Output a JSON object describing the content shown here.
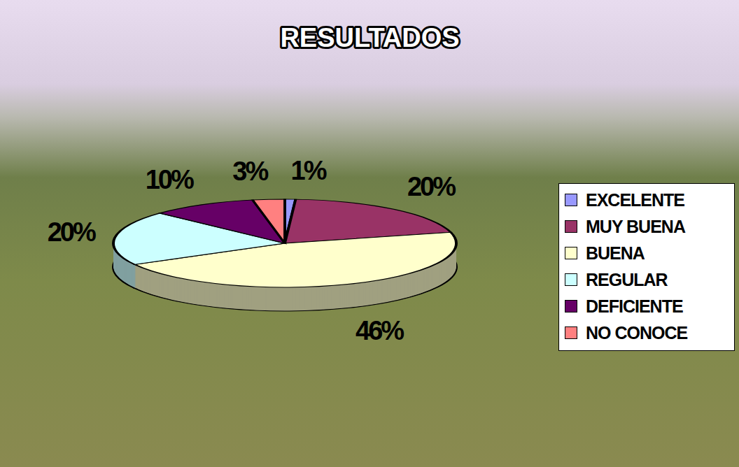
{
  "chart_data": {
    "type": "pie",
    "title": "RESULTADOS",
    "categories": [
      "EXCELENTE",
      "MUY BUENA",
      "BUENA",
      "REGULAR",
      "DEFICIENTE",
      "NO CONOCE"
    ],
    "values": [
      1,
      20,
      46,
      20,
      10,
      3
    ],
    "value_labels": [
      "1%",
      "20%",
      "46%",
      "20%",
      "10%",
      "3%"
    ],
    "colors": [
      "#9999ff",
      "#993366",
      "#ffffcc",
      "#ccffff",
      "#660066",
      "#ff8080"
    ],
    "data_labels": true,
    "legend": "right"
  }
}
